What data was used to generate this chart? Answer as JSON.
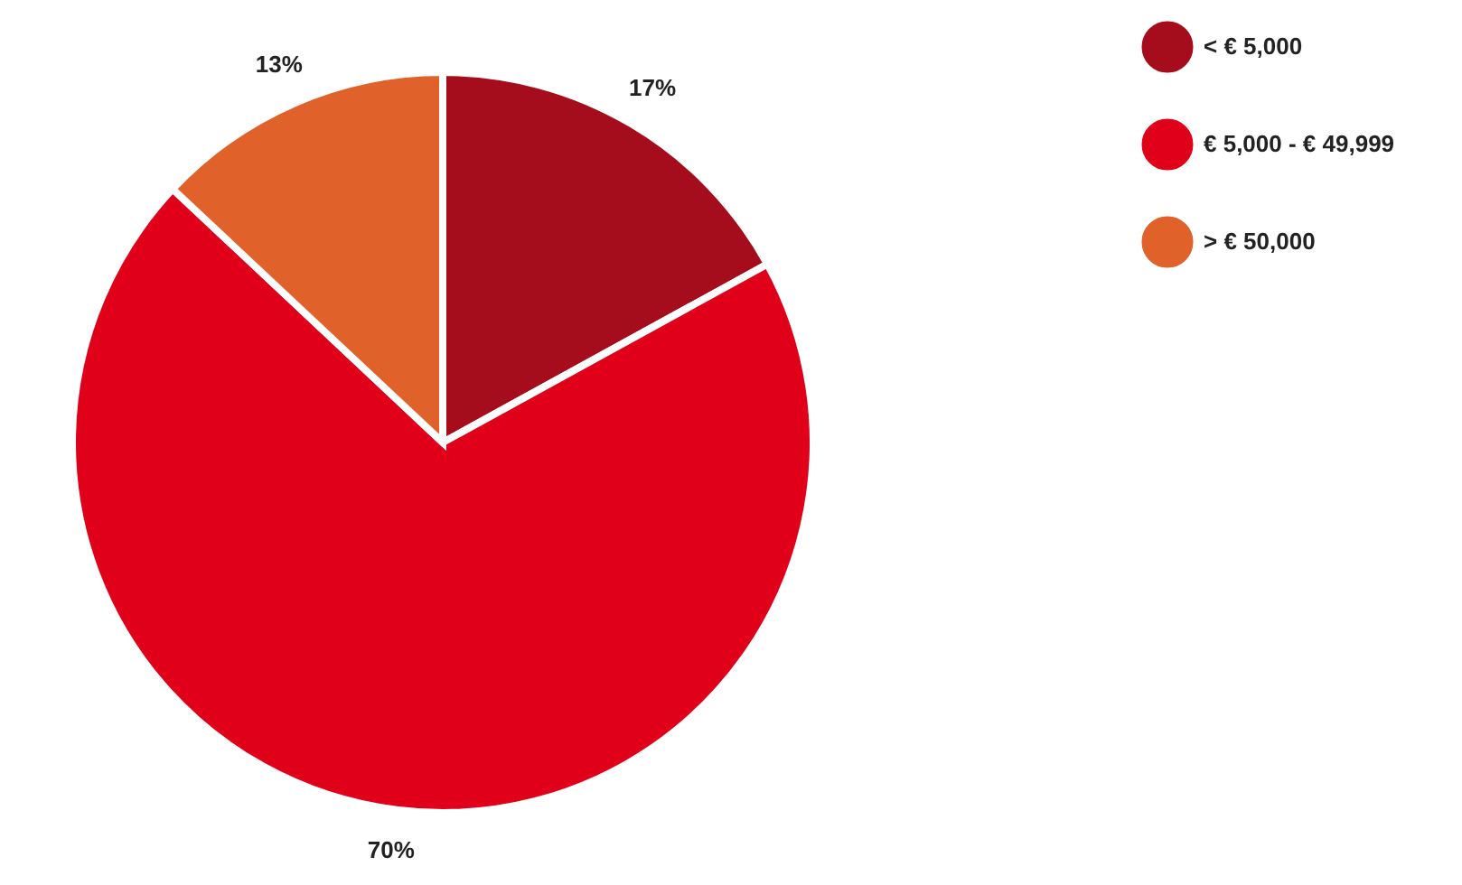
{
  "chart_data": {
    "type": "pie",
    "categories": [
      "< € 5,000",
      "€ 5,000 - € 49,999",
      "> € 50,000"
    ],
    "values": [
      17,
      70,
      13
    ],
    "colors": [
      "#a50d1c",
      "#e0001a",
      "#e0622a"
    ],
    "value_labels": [
      "17%",
      "70%",
      "13%"
    ],
    "legend": "right"
  }
}
